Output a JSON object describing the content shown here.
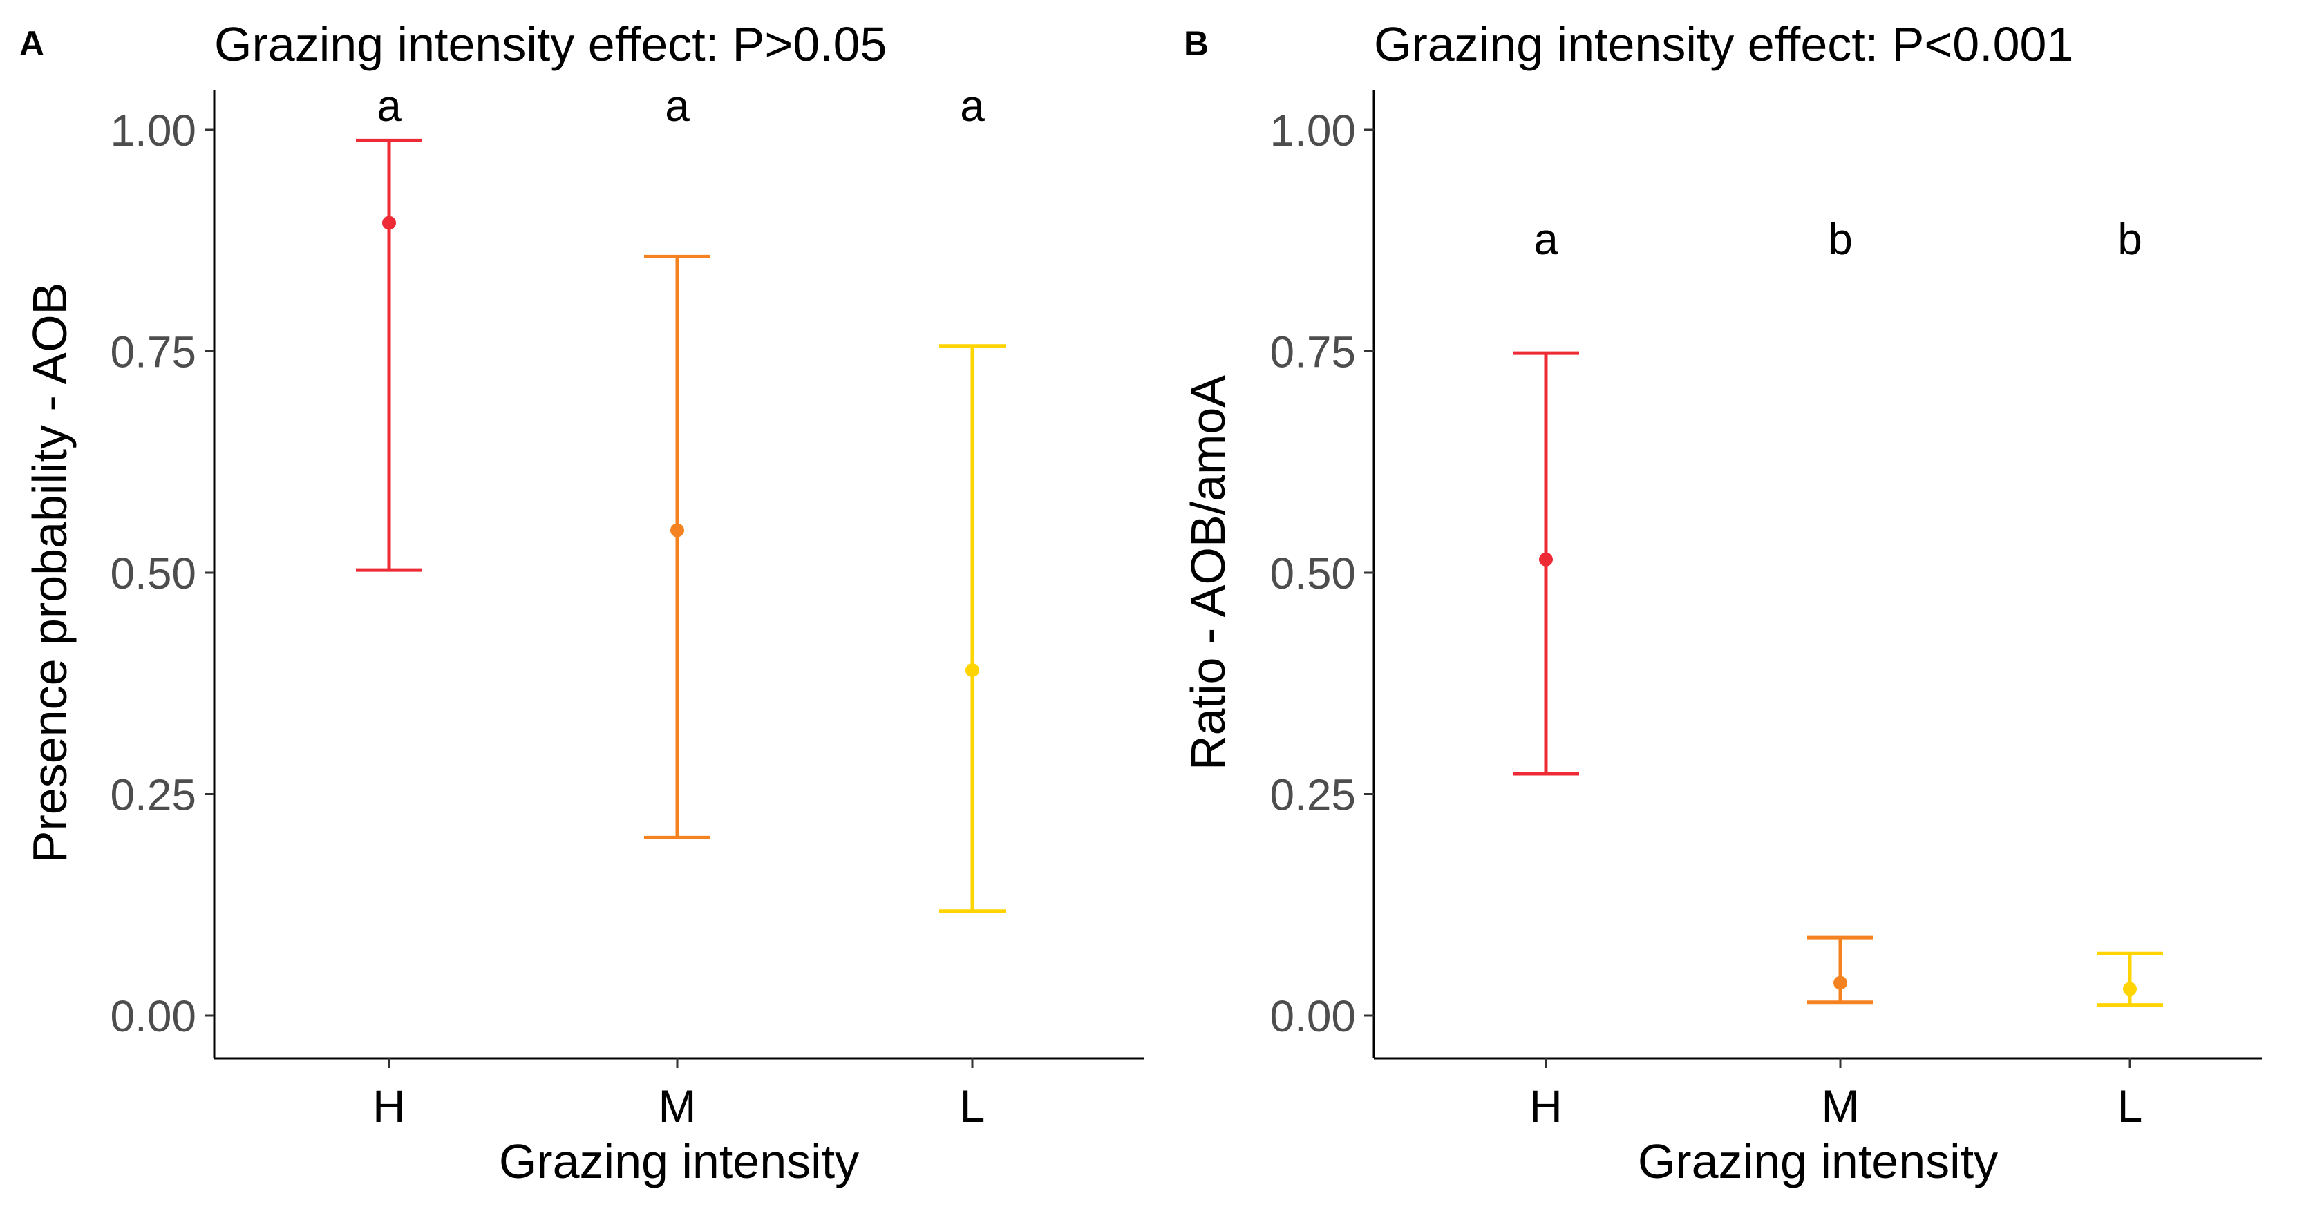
{
  "chart_data": [
    {
      "type": "errorbar",
      "panel_label": "A",
      "title": "Grazing intensity effect: P>0.05",
      "xlabel": "Grazing intensity",
      "ylabel": "Presence probability - AOB",
      "ylim": [
        0,
        1.05
      ],
      "yticks": [
        "0.00",
        "0.25",
        "0.50",
        "0.75",
        "1.00"
      ],
      "ytick_values": [
        0,
        0.25,
        0.5,
        0.75,
        1.0
      ],
      "grid": false,
      "categories": [
        "H",
        "M",
        "L"
      ],
      "colors": [
        "#ee2a35",
        "#f58220",
        "#ffd400"
      ],
      "points": [
        {
          "category": "H",
          "mean": 0.895,
          "lower": 0.503,
          "upper": 0.988,
          "letter": "a"
        },
        {
          "category": "M",
          "mean": 0.548,
          "lower": 0.201,
          "upper": 0.857,
          "letter": "a"
        },
        {
          "category": "L",
          "mean": 0.39,
          "lower": 0.118,
          "upper": 0.756,
          "letter": "a"
        }
      ]
    },
    {
      "type": "errorbar",
      "panel_label": "B",
      "title": "Grazing intensity effect: P<0.001",
      "xlabel": "Grazing intensity",
      "ylabel": "Ratio - AOB/amoA",
      "ylim": [
        0,
        1.05
      ],
      "yticks": [
        "0.00",
        "0.25",
        "0.50",
        "0.75",
        "1.00"
      ],
      "ytick_values": [
        0,
        0.25,
        0.5,
        0.75,
        1.0
      ],
      "grid": false,
      "categories": [
        "H",
        "M",
        "L"
      ],
      "colors": [
        "#ee2a35",
        "#f58220",
        "#ffd400"
      ],
      "points": [
        {
          "category": "H",
          "mean": 0.515,
          "lower": 0.273,
          "upper": 0.748,
          "letter": "a"
        },
        {
          "category": "M",
          "mean": 0.037,
          "lower": 0.015,
          "upper": 0.088,
          "letter": "b"
        },
        {
          "category": "L",
          "mean": 0.03,
          "lower": 0.012,
          "upper": 0.07,
          "letter": "b"
        }
      ]
    }
  ]
}
